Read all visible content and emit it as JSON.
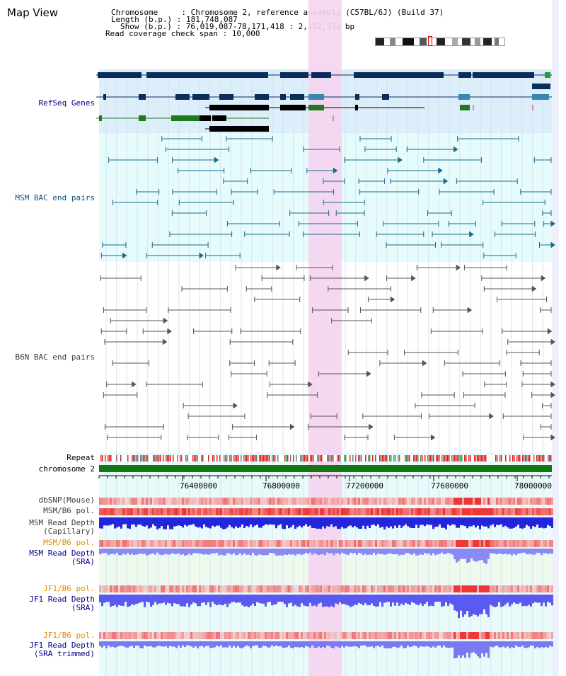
{
  "page": {
    "title": "Map View"
  },
  "header": {
    "chromosome": "Chromosome     : Chromosome 2, reference assembly (C57BL/6J) (Build 37)",
    "length": "Length (b.p.) : 181,748,087",
    "show": "Show (b.p.) : 76,019,087-78,171,418 : 2,152,332 bp",
    "coverage": "Read coverage check span : 10,000"
  },
  "tracks": {
    "refseq": "RefSeq Genes",
    "msm_bac": "MSM BAC end pairs",
    "b6n_bac": "B6N BAC end pairs",
    "repeat": "Repeat",
    "chromosome": "chromosome 2",
    "dbsnp": "dbSNP(Mouse)",
    "msm_b6_pol_1": "MSM/B6 pol.",
    "msm_depth_cap_1": "MSM Read Depth",
    "msm_depth_cap_2": "(Capillary)",
    "msm_b6_pol_2": "MSM/B6 pol.",
    "msm_depth_sra_1": "MSM Read Depth",
    "msm_depth_sra_2": "(SRA)",
    "jf1_pol_1": "JF1/B6 pol.",
    "jf1_depth_sra_1": "JF1 Read Depth",
    "jf1_depth_sra_2": "(SRA)",
    "jf1_pol_2": "JF1/B6 pol.",
    "jf1_depth_trim_1": "JF1 Read Depth",
    "jf1_depth_trim_2": "(SRA trimmed)"
  },
  "axis": {
    "ticks": [
      "76400000",
      "76800000",
      "77200000",
      "77600000",
      "78000000"
    ]
  },
  "colors": {
    "highlight": "#f5d4f0",
    "refseq_bg": "#dbeefa",
    "msm_bg": "#e6fbfb",
    "gene_navy": "#0b2d5c",
    "gene_teal": "#3b86b0",
    "gene_green": "#1f7a1f",
    "chrom_green": "#117711",
    "depth_blue": "#2222dd"
  }
}
